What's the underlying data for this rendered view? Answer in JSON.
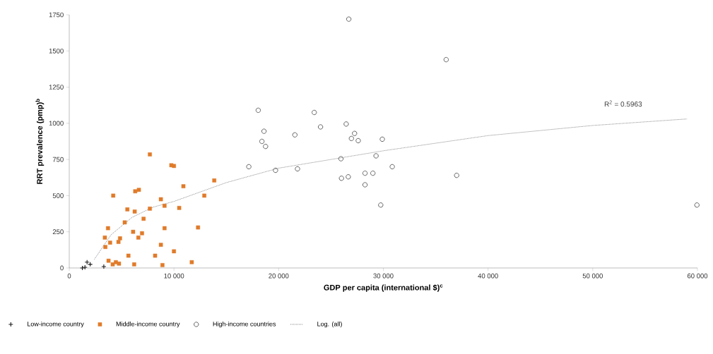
{
  "chart_data": {
    "type": "scatter",
    "xlabel": "GDP per capita (international $)$^{c}$",
    "ylabel": "RRT prevalence (pmp)$^{b}$",
    "xlim": [
      0,
      60000
    ],
    "ylim": [
      0,
      1750
    ],
    "xticks": [
      0,
      {
        "value": 10000,
        "label": "10 000"
      },
      {
        "value": 20000,
        "label": "20 000"
      },
      {
        "value": 30000,
        "label": "30 000"
      },
      {
        "value": 40000,
        "label": "40 000"
      },
      {
        "value": 50000,
        "label": "50 000"
      },
      {
        "value": 60000,
        "label": "60 000"
      }
    ],
    "yticks": [
      0,
      250,
      500,
      750,
      1000,
      1250,
      1500,
      1750
    ],
    "grid": false,
    "legend": "bottom",
    "annotations": [
      "R$^{2}$ = 0.5963"
    ],
    "series": [
      {
        "name": "Low-income country",
        "color": "#1a1a1a",
        "marker": "cross",
        "x": [
          1250,
          1500,
          1700,
          2000,
          3300
        ],
        "values": [
          0,
          5,
          40,
          25,
          10
        ]
      },
      {
        "name": "Middle-income country",
        "color": "#e07b2a",
        "marker": "square",
        "x": [
          7700,
          9750,
          10000,
          10900,
          13850,
          4200,
          6300,
          6650,
          12900,
          8750,
          9100,
          10500,
          7700,
          5550,
          6250,
          7100,
          5300,
          3700,
          9100,
          12300,
          6100,
          6950,
          6600,
          3400,
          4850,
          4700,
          3900,
          3450,
          8750,
          10000,
          5650,
          8200,
          3750,
          4450,
          4750,
          6200,
          8900,
          11700,
          4150
        ],
        "values": [
          785,
          710,
          705,
          565,
          605,
          500,
          530,
          540,
          500,
          475,
          430,
          415,
          410,
          405,
          390,
          340,
          315,
          275,
          275,
          280,
          250,
          240,
          210,
          210,
          205,
          180,
          175,
          145,
          160,
          115,
          85,
          85,
          50,
          40,
          30,
          25,
          20,
          40,
          25
        ]
      },
      {
        "name": "High-income countries",
        "color": "#555555",
        "marker": "circle",
        "x": [
          18050,
          23400,
          26450,
          24000,
          18600,
          21550,
          27250,
          26950,
          27600,
          29900,
          18400,
          18750,
          25950,
          29300,
          17150,
          30850,
          19700,
          21800,
          28250,
          29000,
          26000,
          26650,
          28250,
          29750,
          37000,
          59950,
          26700,
          36000
        ],
        "values": [
          1090,
          1075,
          995,
          975,
          945,
          920,
          930,
          895,
          880,
          890,
          875,
          840,
          755,
          775,
          700,
          700,
          675,
          685,
          655,
          655,
          620,
          630,
          575,
          435,
          640,
          435,
          1720,
          1440
        ]
      },
      {
        "name": "Log. (all)",
        "color": "#888888",
        "type": "line",
        "marker": "none",
        "line_style": "dotted",
        "x": [
          2400,
          4000,
          6000,
          8000,
          10000,
          15000,
          20000,
          30000,
          40000,
          50000,
          59000
        ],
        "values": [
          60,
          230,
          350,
          420,
          460,
          590,
          690,
          810,
          915,
          985,
          1030
        ]
      }
    ]
  }
}
